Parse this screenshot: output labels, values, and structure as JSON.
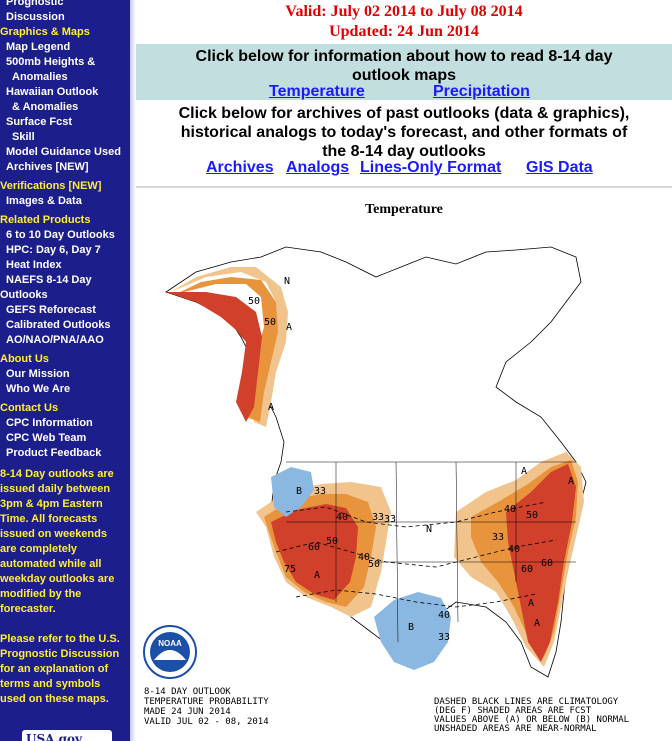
{
  "sidebar": {
    "items": [
      {
        "label": "Prognostic",
        "type": "link"
      },
      {
        "label": "Discussion",
        "type": "link"
      },
      {
        "label": "Graphics & Maps",
        "type": "head"
      },
      {
        "label": "Map Legend",
        "type": "link"
      },
      {
        "label": "500mb Heights &",
        "type": "link"
      },
      {
        "label": "Anomalies",
        "type": "link"
      },
      {
        "label": "Hawaiian Outlook",
        "type": "link"
      },
      {
        "label": "& Anomalies",
        "type": "link"
      },
      {
        "label": "Surface Fcst",
        "type": "link"
      },
      {
        "label": "Skill",
        "type": "link"
      },
      {
        "label": "Model Guidance Used",
        "type": "link"
      },
      {
        "label": "Archives [NEW]",
        "type": "link"
      },
      {
        "label": "Verifications [NEW]",
        "type": "head"
      },
      {
        "label": "Images & Data",
        "type": "link"
      },
      {
        "label": "Related Products",
        "type": "head"
      },
      {
        "label": "6 to 10 Day Outlooks",
        "type": "link"
      },
      {
        "label": "HPC: Day 6, Day 7",
        "type": "link"
      },
      {
        "label": "Heat Index",
        "type": "link"
      },
      {
        "label": "NAEFS 8-14 Day",
        "type": "link"
      },
      {
        "label": "Outlooks",
        "type": "link"
      },
      {
        "label": "GEFS Reforecast",
        "type": "link"
      },
      {
        "label": "Calibrated Outlooks",
        "type": "link"
      },
      {
        "label": "AO/NAO/PNA/AAO",
        "type": "link"
      },
      {
        "label": "About Us",
        "type": "head"
      },
      {
        "label": "Our Mission",
        "type": "link"
      },
      {
        "label": "Who We Are",
        "type": "link"
      },
      {
        "label": "Contact Us",
        "type": "head"
      },
      {
        "label": "CPC Information",
        "type": "link"
      },
      {
        "label": "CPC Web Team",
        "type": "link"
      },
      {
        "label": "Product Feedback",
        "type": "link"
      }
    ],
    "notes": [
      "8-14 Day outlooks are",
      "issued daily between",
      "3pm & 4pm Eastern",
      "Time. All forecasts",
      "issued on weekends",
      "are completely",
      "automated while all",
      "weekday outlooks are",
      "modified by the",
      "forecaster.",
      "",
      "Please refer to the U.S.",
      "Prognostic Discussion",
      "for an explanation of",
      "terms and symbols",
      "used on these maps."
    ],
    "logo": "USA.gov"
  },
  "header": {
    "valid": "Valid: July 02 2014 to July 08 2014",
    "updated": "Updated: 24 Jun 2014"
  },
  "info": {
    "text_line1": "Click below for information about how to read 8-14 day",
    "text_line2": "outlook maps",
    "temperature_link": "Temperature",
    "precipitation_link": "Precipitation"
  },
  "archives": {
    "text_line1": "Click below for archives of past outlooks (data & graphics),",
    "text_line2": "historical analogs to today's forecast, and other formats of",
    "text_line3": "the 8-14 day outlooks",
    "links": [
      "Archives",
      "Analogs",
      "Lines-Only Format",
      "GIS Data"
    ]
  },
  "map": {
    "title": "Temperature",
    "caption_lines": [
      "8-14 DAY OUTLOOK",
      "TEMPERATURE PROBABILITY",
      "MADE   24 JUN 2014",
      "VALID    JUL 02 - 08, 2014"
    ],
    "legend_lines": [
      "DASHED BLACK LINES ARE CLIMATOLOGY",
      "(DEG F) SHADED AREAS ARE FCST",
      "VALUES ABOVE (A) OR BELOW (B) NORMAL",
      "UNSHADED AREAS ARE NEAR-NORMAL"
    ],
    "region_labels": [
      {
        "text": "N"
      },
      {
        "text": "50"
      },
      {
        "text": "50"
      },
      {
        "text": "A"
      },
      {
        "text": "A"
      },
      {
        "text": "B"
      },
      {
        "text": "33"
      },
      {
        "text": "33"
      },
      {
        "text": "N"
      },
      {
        "text": "40"
      },
      {
        "text": "50"
      },
      {
        "text": "60"
      },
      {
        "text": "A"
      },
      {
        "text": "75"
      },
      {
        "text": "50"
      },
      {
        "text": "40"
      },
      {
        "text": "33"
      },
      {
        "text": "B"
      },
      {
        "text": "40"
      },
      {
        "text": "33"
      },
      {
        "text": "A"
      },
      {
        "text": "40"
      },
      {
        "text": "50"
      },
      {
        "text": "60"
      },
      {
        "text": "A"
      },
      {
        "text": "A"
      },
      {
        "text": "60"
      },
      {
        "text": "A"
      },
      {
        "text": "40"
      },
      {
        "text": "33"
      }
    ],
    "logo_text": "NOAA",
    "colors": {
      "above_light": "#f2c48d",
      "above_mid": "#e8943c",
      "above_dark": "#d0402a",
      "below": "#8ab8e0"
    }
  }
}
